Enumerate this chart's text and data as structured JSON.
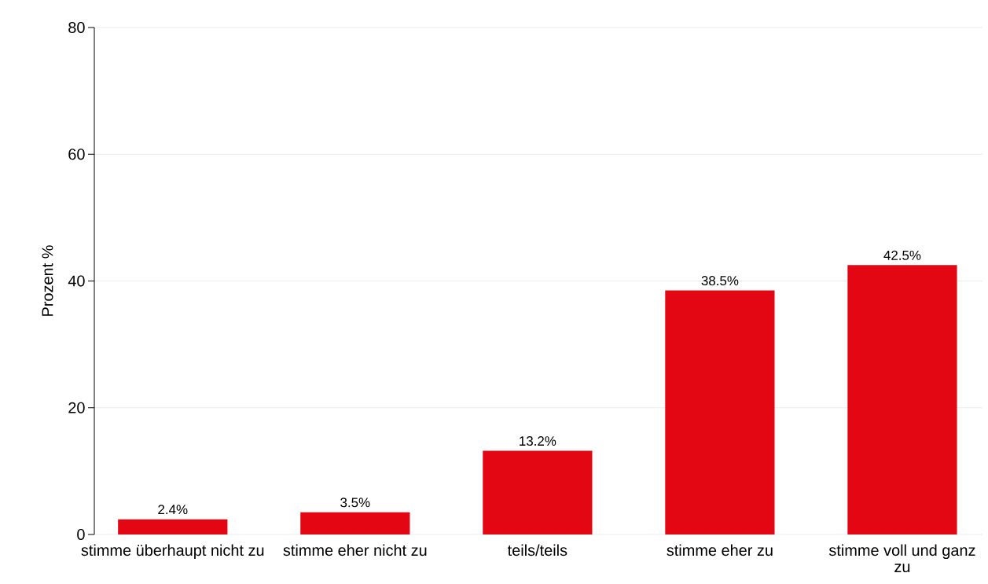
{
  "chart_data": {
    "type": "bar",
    "ylabel": "Prozent %",
    "categories": [
      "stimme überhaupt nicht zu",
      "stimme eher nicht zu",
      "teils/teils",
      "stimme eher zu",
      "stimme voll und ganz zu"
    ],
    "values": [
      2.4,
      3.5,
      13.2,
      38.5,
      42.5
    ],
    "value_labels": [
      "2.4%",
      "3.5%",
      "13.2%",
      "38.5%",
      "42.5%"
    ],
    "color": "#e30613",
    "ylim": [
      0,
      80
    ],
    "yticks": [
      0,
      20,
      40,
      60,
      80
    ],
    "grid": "y"
  }
}
